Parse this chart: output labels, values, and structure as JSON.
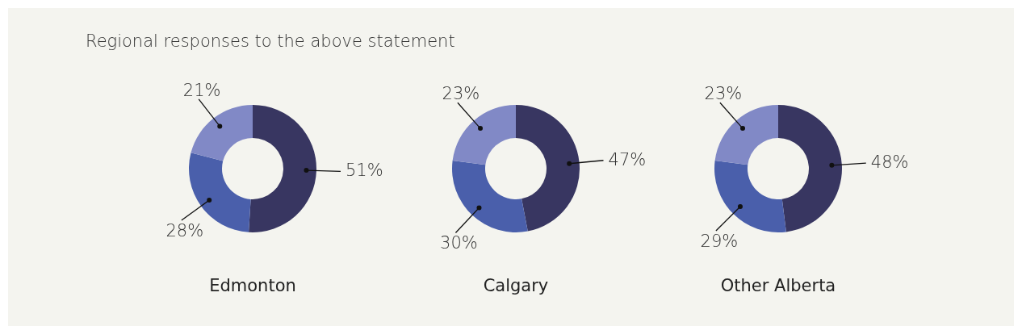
{
  "chart_data": [
    {
      "type": "other",
      "title": "Regional responses to the above statement"
    },
    {
      "type": "donut",
      "title": "Edmonton",
      "categories": [
        null,
        null,
        null
      ],
      "values": [
        51,
        28,
        21
      ],
      "colors": [
        "#383661",
        "#4a5fab",
        "#8189c6"
      ],
      "value_labels": [
        "51%",
        "28%",
        "21%"
      ]
    },
    {
      "type": "donut",
      "title": "Calgary",
      "categories": [
        null,
        null,
        null
      ],
      "values": [
        47,
        30,
        23
      ],
      "colors": [
        "#383661",
        "#4a5fab",
        "#8189c6"
      ],
      "value_labels": [
        "47%",
        "30%",
        "23%"
      ]
    },
    {
      "type": "donut",
      "title": "Other Alberta",
      "categories": [
        null,
        null,
        null
      ],
      "values": [
        48,
        29,
        23
      ],
      "colors": [
        "#383661",
        "#4a5fab",
        "#8189c6"
      ],
      "value_labels": [
        "48%",
        "29%",
        "23%"
      ]
    }
  ]
}
